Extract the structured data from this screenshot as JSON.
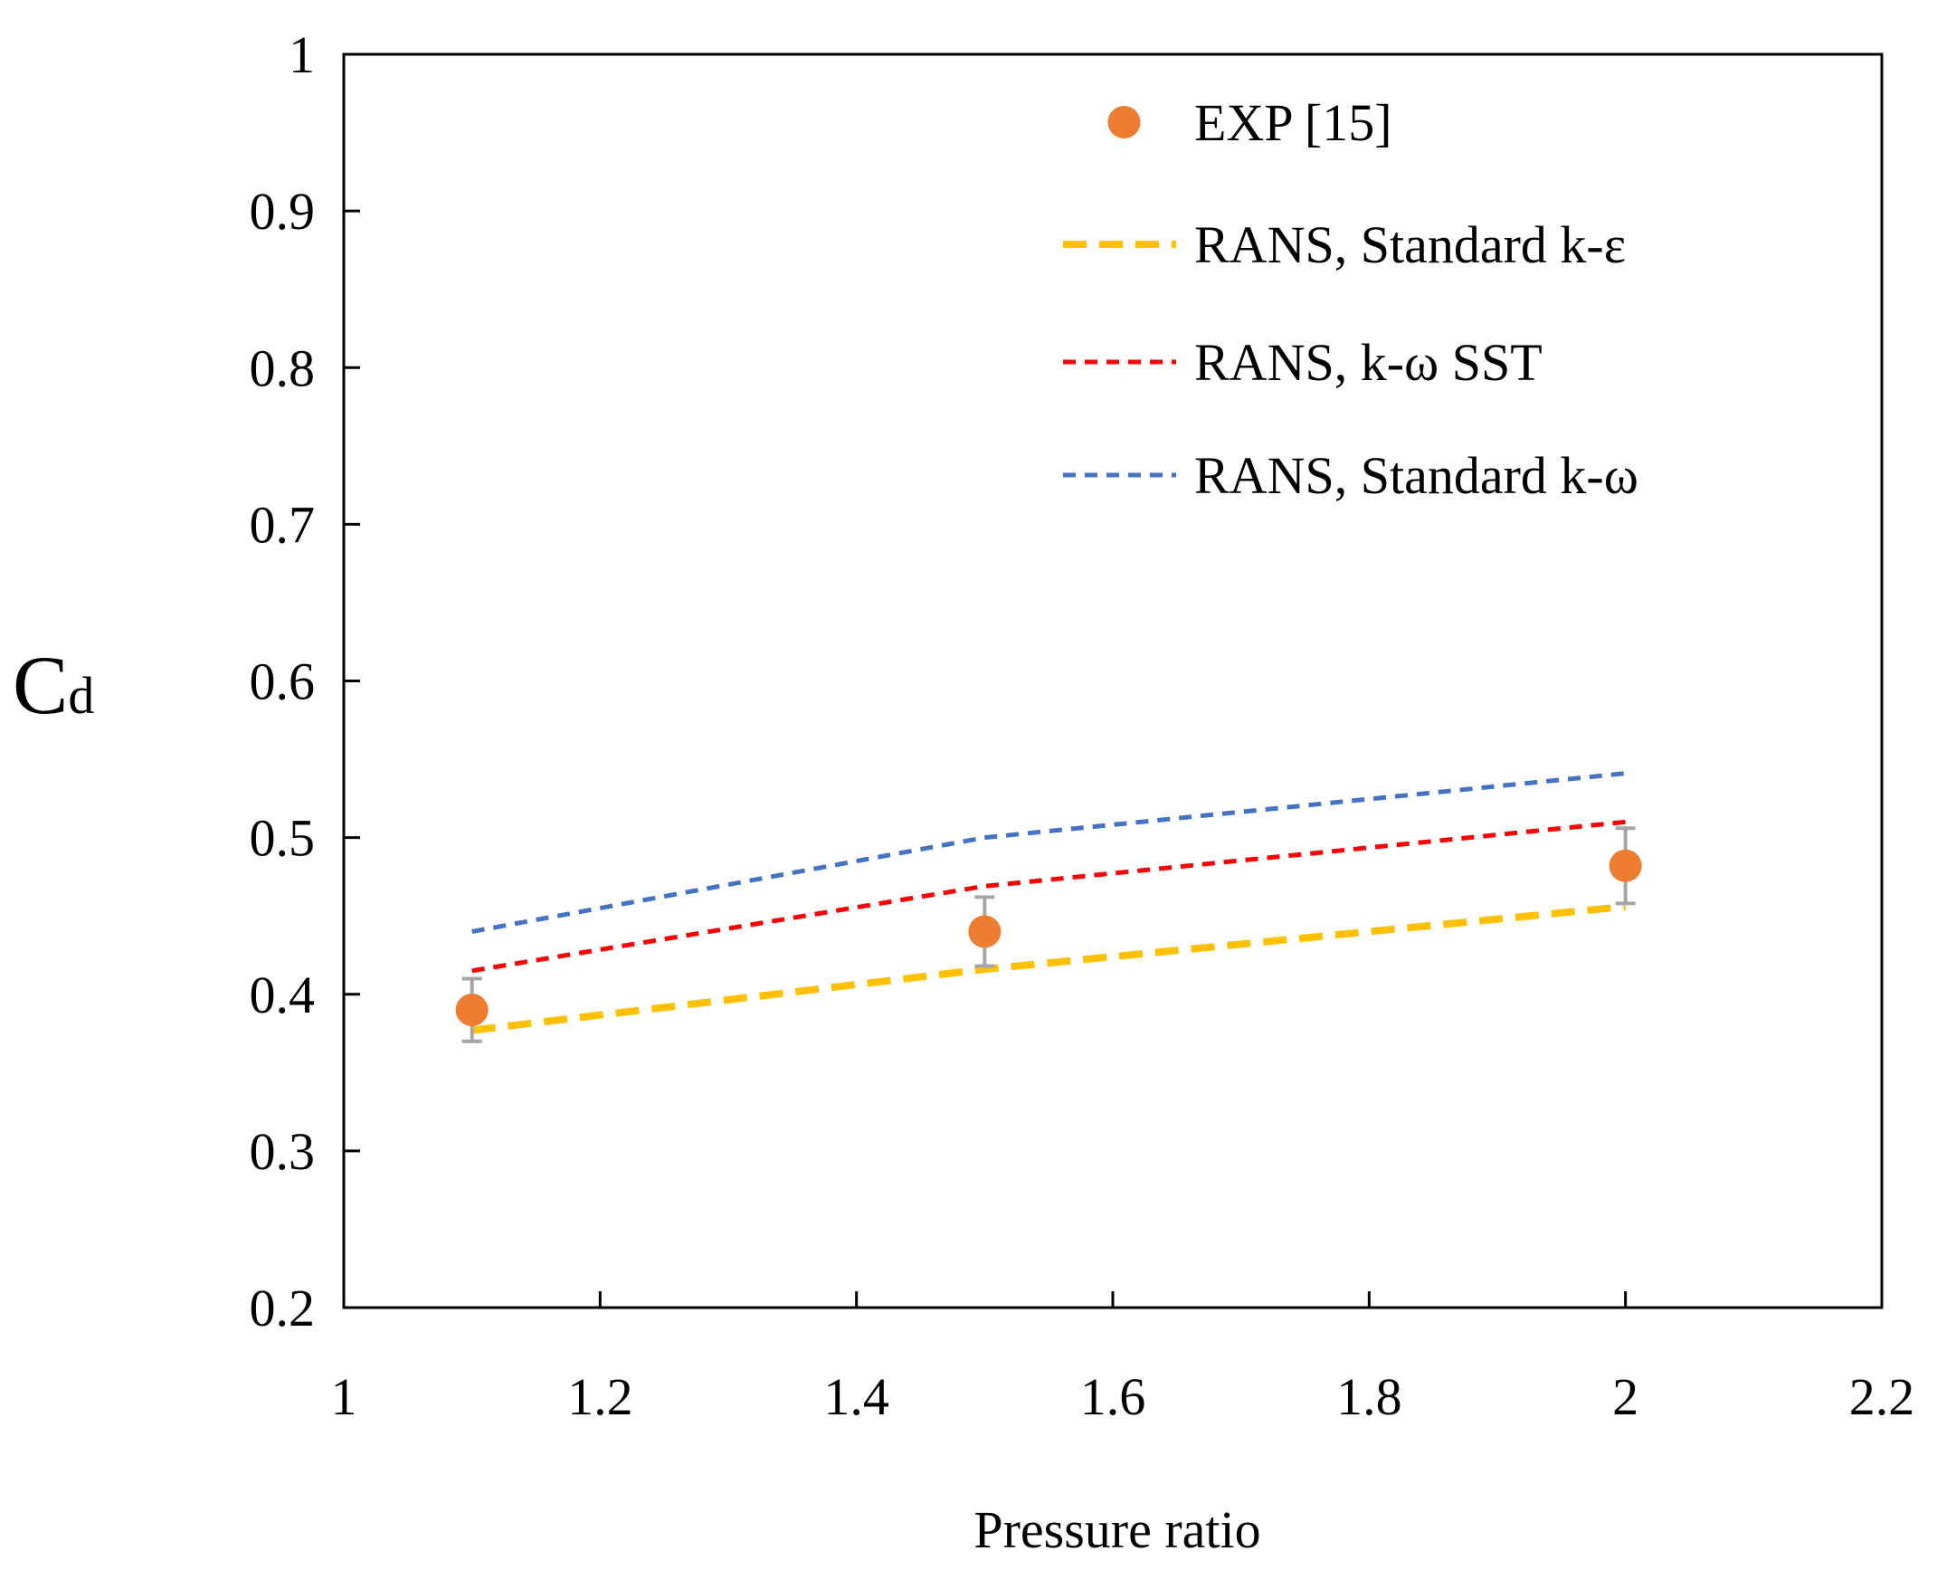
{
  "chart_data": {
    "type": "line",
    "title": "",
    "xlabel": "Pressure ratio",
    "ylabel": "Cd",
    "ylabel_parts": {
      "main": "C",
      "sub": "d"
    },
    "xlim": [
      1,
      2.2
    ],
    "ylim": [
      0.2,
      1.0
    ],
    "xticks": [
      1,
      1.2,
      1.4,
      1.6,
      1.8,
      2,
      2.2
    ],
    "xtick_labels": [
      "1",
      "1.2",
      "1.4",
      "1.6",
      "1.8",
      "2",
      "2.2"
    ],
    "yticks": [
      0.2,
      0.3,
      0.4,
      0.5,
      0.6,
      0.7,
      0.8,
      0.9,
      1.0
    ],
    "ytick_labels": [
      "0.2",
      "0.3",
      "0.4",
      "0.5",
      "0.6",
      "0.7",
      "0.8",
      "0.9",
      "1"
    ],
    "grid": false,
    "legend_position": "top-right",
    "series": [
      {
        "name": "EXP [15]",
        "kind": "scatter",
        "color": "#ED7D31",
        "error_bar_color": "#A6A6A6",
        "x": [
          1.1,
          1.5,
          2.0
        ],
        "y": [
          0.39,
          0.44,
          0.482
        ],
        "yerr": [
          0.02,
          0.022,
          0.024
        ]
      },
      {
        "name": "RANS, Standard k-ε",
        "kind": "line",
        "style": "long-dash",
        "color": "#FFC000",
        "x": [
          1.1,
          1.5,
          2.0
        ],
        "y": [
          0.377,
          0.416,
          0.456
        ]
      },
      {
        "name": "RANS, k-ω SST",
        "kind": "line",
        "style": "short-dash",
        "color": "#FF0000",
        "x": [
          1.1,
          1.5,
          2.0
        ],
        "y": [
          0.415,
          0.469,
          0.51
        ]
      },
      {
        "name": "RANS, Standard k-ω",
        "kind": "line",
        "style": "short-dash",
        "color": "#4472C4",
        "x": [
          1.1,
          1.5,
          2.0
        ],
        "y": [
          0.44,
          0.5,
          0.541
        ]
      }
    ]
  }
}
